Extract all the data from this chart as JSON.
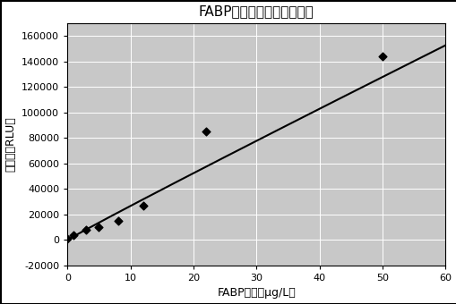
{
  "title": "FABP浓度和发光値间的关系",
  "xlabel": "FABP浓度（μg/L）",
  "ylabel": "发光値（RLU）",
  "scatter_x": [
    0.0,
    1.0,
    3.0,
    5.0,
    8.0,
    12.0,
    22.0,
    50.0
  ],
  "scatter_y": [
    1000,
    4000,
    8000,
    10000,
    15000,
    27000,
    85000,
    144000
  ],
  "xlim": [
    0,
    60
  ],
  "ylim": [
    -20000,
    170000
  ],
  "xticks": [
    0,
    10,
    20,
    30,
    40,
    50,
    60
  ],
  "yticks": [
    -20000,
    0,
    20000,
    40000,
    60000,
    80000,
    100000,
    120000,
    140000,
    160000
  ],
  "plot_color": "#000000",
  "scatter_color": "#000000",
  "bg_color": "#c8c8c8",
  "grid_color": "#ffffff",
  "title_fontsize": 11,
  "label_fontsize": 9,
  "tick_fontsize": 8
}
